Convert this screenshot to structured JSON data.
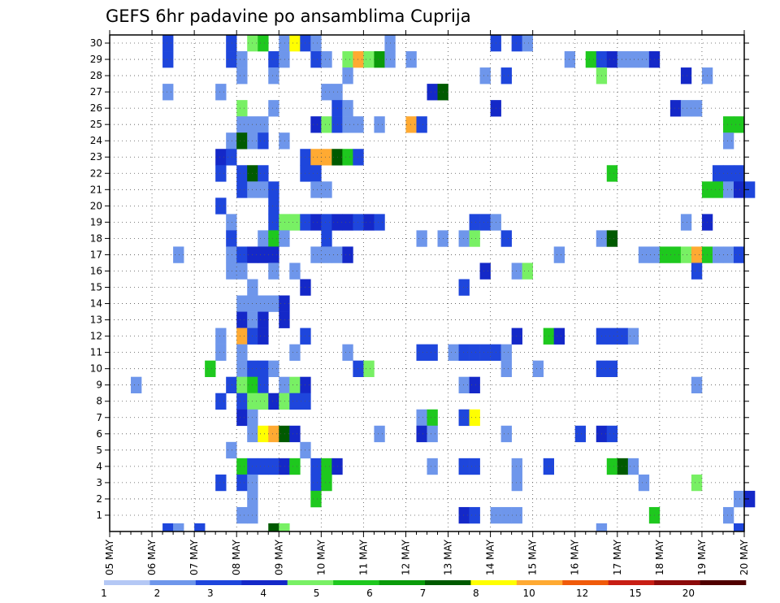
{
  "chart_data": {
    "type": "heatmap",
    "title": "GEFS 6hr padavine po ansamblima Cuprija",
    "xlabel": "",
    "ylabel": "",
    "x_tick_labels": [
      "05 MAY",
      "06 MAY",
      "07 MAY",
      "08 MAY",
      "09 MAY",
      "10 MAY",
      "11 MAY",
      "12 MAY",
      "13 MAY",
      "14 MAY",
      "15 MAY",
      "16 MAY",
      "17 MAY",
      "18 MAY",
      "19 MAY",
      "20 MAY"
    ],
    "x_range_days": [
      0,
      15
    ],
    "y_tick_labels": [
      1,
      2,
      3,
      4,
      5,
      6,
      7,
      8,
      9,
      10,
      11,
      12,
      13,
      14,
      15,
      16,
      17,
      18,
      19,
      20,
      21,
      22,
      23,
      24,
      25,
      26,
      27,
      28,
      29,
      30
    ],
    "y_range": [
      0,
      30
    ],
    "grid": true,
    "colorbar": {
      "position": "bottom",
      "labels": [
        "1",
        "2",
        "3",
        "4",
        "5",
        "6",
        "7",
        "8",
        "10",
        "12",
        "15",
        "20"
      ],
      "colors": [
        "#b4c8f5",
        "#6e96eb",
        "#1e46dc",
        "#1428c8",
        "#78f064",
        "#1ec81e",
        "#0a9b0a",
        "#005a00",
        "#ffff00",
        "#ffaa32",
        "#f05a0a",
        "#c81e14",
        "#8c0a0a",
        "#500000"
      ]
    },
    "cells_note": "each cell: [forecast step index (6h steps from 05 MAY 00z), ensemble member, precipitation class index]",
    "cells": [
      [
        5,
        30,
        2
      ],
      [
        11,
        30,
        2
      ],
      [
        13,
        30,
        4
      ],
      [
        14,
        30,
        5
      ],
      [
        16,
        30,
        1
      ],
      [
        17,
        30,
        8
      ],
      [
        18,
        30,
        2
      ],
      [
        19,
        30,
        1
      ],
      [
        26,
        30,
        1
      ],
      [
        36,
        30,
        2
      ],
      [
        38,
        30,
        2
      ],
      [
        39,
        30,
        1
      ],
      [
        5,
        29,
        2
      ],
      [
        11,
        29,
        2
      ],
      [
        12,
        29,
        1
      ],
      [
        15,
        29,
        2
      ],
      [
        16,
        29,
        1
      ],
      [
        19,
        29,
        2
      ],
      [
        20,
        29,
        1
      ],
      [
        22,
        29,
        4
      ],
      [
        23,
        29,
        9
      ],
      [
        24,
        29,
        4
      ],
      [
        25,
        29,
        6
      ],
      [
        26,
        29,
        1
      ],
      [
        28,
        29,
        1
      ],
      [
        43,
        29,
        1
      ],
      [
        45,
        29,
        5
      ],
      [
        46,
        29,
        2
      ],
      [
        47,
        29,
        3
      ],
      [
        48,
        29,
        1
      ],
      [
        49,
        29,
        1
      ],
      [
        50,
        29,
        1
      ],
      [
        51,
        29,
        3
      ],
      [
        12,
        28,
        1
      ],
      [
        15,
        28,
        1
      ],
      [
        22,
        28,
        1
      ],
      [
        35,
        28,
        1
      ],
      [
        37,
        28,
        2
      ],
      [
        46,
        28,
        4
      ],
      [
        54,
        28,
        3
      ],
      [
        56,
        28,
        1
      ],
      [
        5,
        27,
        1
      ],
      [
        10,
        27,
        1
      ],
      [
        20,
        27,
        1
      ],
      [
        21,
        27,
        1
      ],
      [
        30,
        27,
        3
      ],
      [
        31,
        27,
        7
      ],
      [
        12,
        26,
        4
      ],
      [
        15,
        26,
        1
      ],
      [
        21,
        26,
        2
      ],
      [
        22,
        26,
        1
      ],
      [
        36,
        26,
        3
      ],
      [
        53,
        26,
        3
      ],
      [
        54,
        26,
        1
      ],
      [
        55,
        26,
        1
      ],
      [
        12,
        25,
        1
      ],
      [
        13,
        25,
        1
      ],
      [
        14,
        25,
        1
      ],
      [
        19,
        25,
        3
      ],
      [
        20,
        25,
        4
      ],
      [
        21,
        25,
        2
      ],
      [
        22,
        25,
        1
      ],
      [
        23,
        25,
        1
      ],
      [
        25,
        25,
        1
      ],
      [
        28,
        25,
        9
      ],
      [
        29,
        25,
        2
      ],
      [
        58,
        25,
        5
      ],
      [
        59,
        25,
        5
      ],
      [
        11,
        24,
        1
      ],
      [
        12,
        24,
        7
      ],
      [
        13,
        24,
        1
      ],
      [
        14,
        24,
        2
      ],
      [
        16,
        24,
        1
      ],
      [
        58,
        24,
        1
      ],
      [
        10,
        23,
        3
      ],
      [
        11,
        23,
        2
      ],
      [
        18,
        23,
        2
      ],
      [
        19,
        23,
        9
      ],
      [
        20,
        23,
        9
      ],
      [
        21,
        23,
        7
      ],
      [
        22,
        23,
        5
      ],
      [
        23,
        23,
        2
      ],
      [
        10,
        22,
        2
      ],
      [
        12,
        22,
        2
      ],
      [
        13,
        22,
        7
      ],
      [
        14,
        22,
        2
      ],
      [
        18,
        22,
        2
      ],
      [
        19,
        22,
        2
      ],
      [
        47,
        22,
        5
      ],
      [
        57,
        22,
        2
      ],
      [
        58,
        22,
        2
      ],
      [
        59,
        22,
        2
      ],
      [
        12,
        21,
        2
      ],
      [
        13,
        21,
        1
      ],
      [
        14,
        21,
        1
      ],
      [
        15,
        21,
        2
      ],
      [
        19,
        21,
        1
      ],
      [
        20,
        21,
        1
      ],
      [
        56,
        21,
        5
      ],
      [
        57,
        21,
        5
      ],
      [
        58,
        21,
        1
      ],
      [
        59,
        21,
        3
      ],
      [
        60,
        21,
        2
      ],
      [
        10,
        20,
        2
      ],
      [
        15,
        20,
        2
      ],
      [
        11,
        19,
        1
      ],
      [
        15,
        19,
        2
      ],
      [
        16,
        19,
        4
      ],
      [
        17,
        19,
        4
      ],
      [
        18,
        19,
        2
      ],
      [
        19,
        19,
        3
      ],
      [
        20,
        19,
        2
      ],
      [
        21,
        19,
        3
      ],
      [
        22,
        19,
        3
      ],
      [
        23,
        19,
        2
      ],
      [
        24,
        19,
        3
      ],
      [
        25,
        19,
        2
      ],
      [
        34,
        19,
        2
      ],
      [
        35,
        19,
        2
      ],
      [
        36,
        19,
        1
      ],
      [
        54,
        19,
        1
      ],
      [
        56,
        19,
        3
      ],
      [
        11,
        18,
        2
      ],
      [
        14,
        18,
        1
      ],
      [
        15,
        18,
        5
      ],
      [
        16,
        18,
        1
      ],
      [
        20,
        18,
        2
      ],
      [
        29,
        18,
        1
      ],
      [
        31,
        18,
        1
      ],
      [
        33,
        18,
        1
      ],
      [
        34,
        18,
        4
      ],
      [
        37,
        18,
        2
      ],
      [
        46,
        18,
        1
      ],
      [
        47,
        18,
        7
      ],
      [
        6,
        17,
        1
      ],
      [
        11,
        17,
        1
      ],
      [
        12,
        17,
        2
      ],
      [
        13,
        17,
        3
      ],
      [
        14,
        17,
        3
      ],
      [
        15,
        17,
        3
      ],
      [
        19,
        17,
        1
      ],
      [
        20,
        17,
        1
      ],
      [
        21,
        17,
        1
      ],
      [
        22,
        17,
        3
      ],
      [
        42,
        17,
        1
      ],
      [
        50,
        17,
        1
      ],
      [
        51,
        17,
        1
      ],
      [
        52,
        17,
        5
      ],
      [
        53,
        17,
        5
      ],
      [
        54,
        17,
        4
      ],
      [
        55,
        17,
        9
      ],
      [
        56,
        17,
        5
      ],
      [
        57,
        17,
        1
      ],
      [
        58,
        17,
        1
      ],
      [
        59,
        17,
        2
      ],
      [
        11,
        16,
        1
      ],
      [
        12,
        16,
        1
      ],
      [
        15,
        16,
        1
      ],
      [
        17,
        16,
        1
      ],
      [
        35,
        16,
        3
      ],
      [
        38,
        16,
        1
      ],
      [
        39,
        16,
        4
      ],
      [
        55,
        16,
        2
      ],
      [
        13,
        15,
        1
      ],
      [
        18,
        15,
        3
      ],
      [
        33,
        15,
        2
      ],
      [
        12,
        14,
        1
      ],
      [
        13,
        14,
        1
      ],
      [
        14,
        14,
        1
      ],
      [
        15,
        14,
        1
      ],
      [
        16,
        14,
        3
      ],
      [
        12,
        13,
        3
      ],
      [
        13,
        13,
        1
      ],
      [
        14,
        13,
        3
      ],
      [
        16,
        13,
        3
      ],
      [
        10,
        12,
        1
      ],
      [
        12,
        12,
        9
      ],
      [
        13,
        12,
        2
      ],
      [
        14,
        12,
        3
      ],
      [
        18,
        12,
        2
      ],
      [
        38,
        12,
        3
      ],
      [
        41,
        12,
        5
      ],
      [
        42,
        12,
        3
      ],
      [
        46,
        12,
        2
      ],
      [
        47,
        12,
        2
      ],
      [
        48,
        12,
        2
      ],
      [
        49,
        12,
        1
      ],
      [
        10,
        11,
        1
      ],
      [
        12,
        11,
        1
      ],
      [
        17,
        11,
        1
      ],
      [
        22,
        11,
        1
      ],
      [
        29,
        11,
        2
      ],
      [
        30,
        11,
        2
      ],
      [
        32,
        11,
        1
      ],
      [
        33,
        11,
        2
      ],
      [
        34,
        11,
        2
      ],
      [
        35,
        11,
        2
      ],
      [
        36,
        11,
        2
      ],
      [
        37,
        11,
        1
      ],
      [
        9,
        10,
        5
      ],
      [
        12,
        10,
        1
      ],
      [
        13,
        10,
        2
      ],
      [
        14,
        10,
        2
      ],
      [
        15,
        10,
        1
      ],
      [
        23,
        10,
        2
      ],
      [
        24,
        10,
        4
      ],
      [
        37,
        10,
        1
      ],
      [
        40,
        10,
        1
      ],
      [
        46,
        10,
        2
      ],
      [
        47,
        10,
        2
      ],
      [
        2,
        9,
        1
      ],
      [
        11,
        9,
        2
      ],
      [
        12,
        9,
        4
      ],
      [
        13,
        9,
        5
      ],
      [
        14,
        9,
        2
      ],
      [
        16,
        9,
        1
      ],
      [
        17,
        9,
        4
      ],
      [
        18,
        9,
        3
      ],
      [
        33,
        9,
        1
      ],
      [
        34,
        9,
        3
      ],
      [
        55,
        9,
        1
      ],
      [
        10,
        8,
        2
      ],
      [
        12,
        8,
        2
      ],
      [
        13,
        8,
        4
      ],
      [
        14,
        8,
        4
      ],
      [
        15,
        8,
        3
      ],
      [
        16,
        8,
        4
      ],
      [
        17,
        8,
        2
      ],
      [
        18,
        8,
        2
      ],
      [
        12,
        7,
        3
      ],
      [
        13,
        7,
        1
      ],
      [
        29,
        7,
        1
      ],
      [
        30,
        7,
        5
      ],
      [
        33,
        7,
        2
      ],
      [
        34,
        7,
        8
      ],
      [
        13,
        6,
        1
      ],
      [
        14,
        6,
        8
      ],
      [
        15,
        6,
        9
      ],
      [
        16,
        6,
        7
      ],
      [
        17,
        6,
        3
      ],
      [
        25,
        6,
        1
      ],
      [
        29,
        6,
        3
      ],
      [
        30,
        6,
        1
      ],
      [
        37,
        6,
        1
      ],
      [
        44,
        6,
        2
      ],
      [
        46,
        6,
        3
      ],
      [
        47,
        6,
        2
      ],
      [
        11,
        5,
        1
      ],
      [
        18,
        5,
        1
      ],
      [
        12,
        4,
        5
      ],
      [
        13,
        4,
        2
      ],
      [
        14,
        4,
        2
      ],
      [
        15,
        4,
        2
      ],
      [
        16,
        4,
        3
      ],
      [
        17,
        4,
        5
      ],
      [
        19,
        4,
        2
      ],
      [
        20,
        4,
        5
      ],
      [
        21,
        4,
        3
      ],
      [
        30,
        4,
        1
      ],
      [
        33,
        4,
        2
      ],
      [
        34,
        4,
        2
      ],
      [
        38,
        4,
        1
      ],
      [
        41,
        4,
        2
      ],
      [
        47,
        4,
        5
      ],
      [
        48,
        4,
        7
      ],
      [
        49,
        4,
        1
      ],
      [
        10,
        3,
        2
      ],
      [
        12,
        3,
        2
      ],
      [
        13,
        3,
        1
      ],
      [
        19,
        3,
        2
      ],
      [
        20,
        3,
        5
      ],
      [
        38,
        3,
        1
      ],
      [
        50,
        3,
        1
      ],
      [
        55,
        3,
        4
      ],
      [
        13,
        2,
        1
      ],
      [
        19,
        2,
        5
      ],
      [
        59,
        2,
        1
      ],
      [
        60,
        2,
        3
      ],
      [
        12,
        1,
        1
      ],
      [
        13,
        1,
        1
      ],
      [
        33,
        1,
        3
      ],
      [
        34,
        1,
        2
      ],
      [
        36,
        1,
        1
      ],
      [
        37,
        1,
        1
      ],
      [
        38,
        1,
        1
      ],
      [
        51,
        1,
        5
      ],
      [
        58,
        1,
        1
      ],
      [
        5,
        0,
        2
      ],
      [
        6,
        0,
        1
      ],
      [
        8,
        0,
        2
      ],
      [
        15,
        0,
        7
      ],
      [
        16,
        0,
        4
      ],
      [
        46,
        0,
        1
      ],
      [
        59,
        0,
        2
      ]
    ]
  }
}
